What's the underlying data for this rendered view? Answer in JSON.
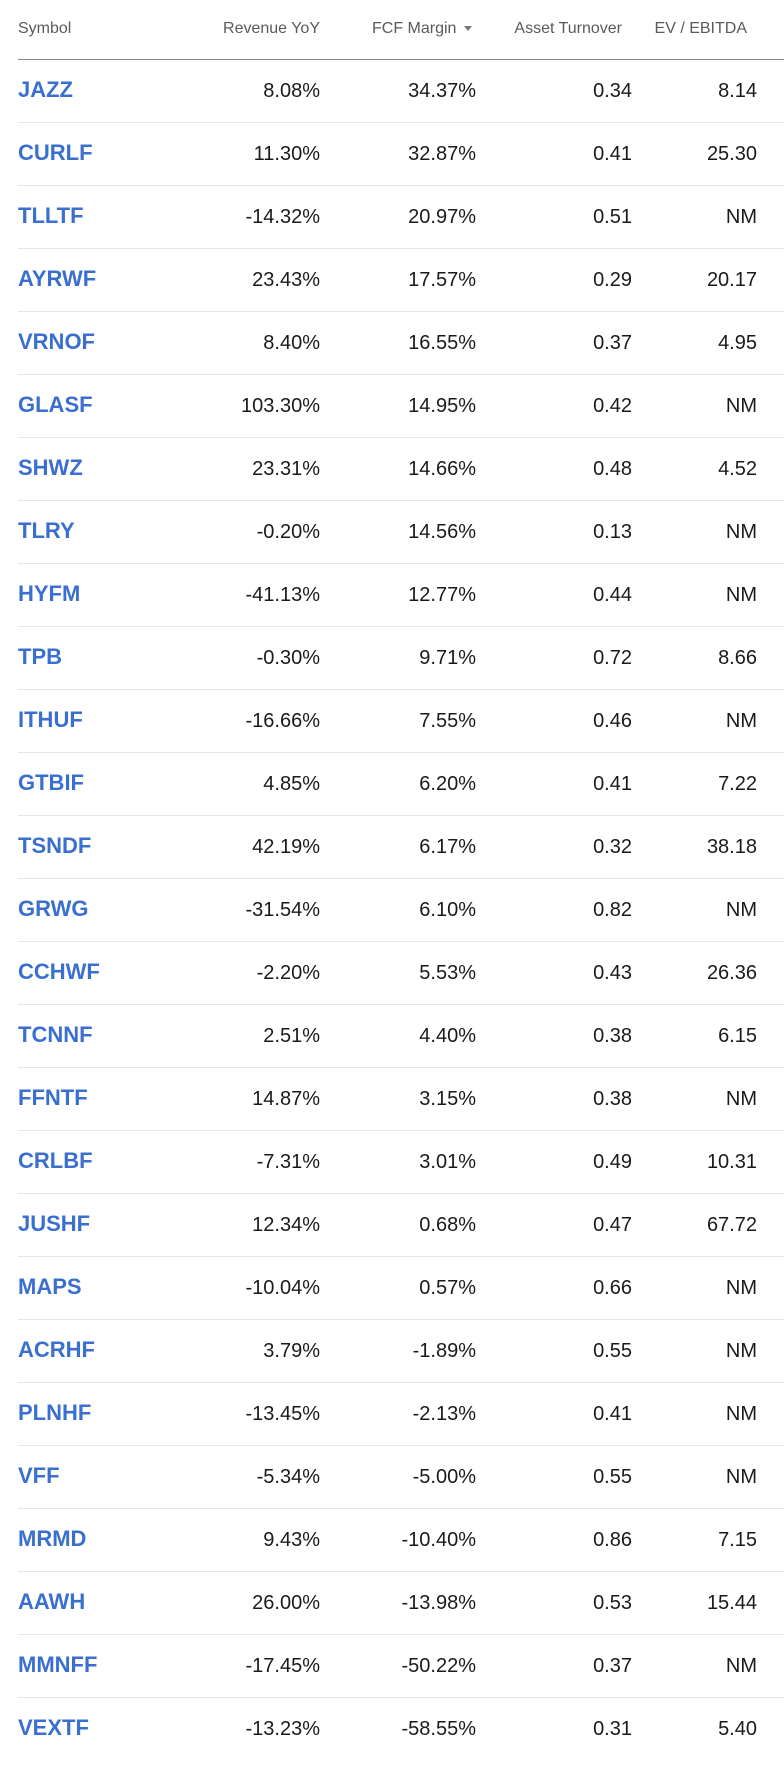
{
  "columns": {
    "symbol": "Symbol",
    "revenue_yoy": "Revenue YoY",
    "fcf_margin": "FCF Margin",
    "asset_turnover": "Asset Turnover",
    "ev_ebitda": "EV / EBITDA"
  },
  "sort": {
    "column": "fcf_margin",
    "direction": "descending",
    "icon": "caret-down-icon"
  },
  "colors": {
    "symbol_link": "#3a6fd0",
    "header_text": "#5a5a5a",
    "row_divider": "#e6e6e6"
  },
  "rows": [
    {
      "symbol": "JAZZ",
      "revenue_yoy": "8.08%",
      "fcf_margin": "34.37%",
      "asset_turnover": "0.34",
      "ev_ebitda": "8.14"
    },
    {
      "symbol": "CURLF",
      "revenue_yoy": "11.30%",
      "fcf_margin": "32.87%",
      "asset_turnover": "0.41",
      "ev_ebitda": "25.30"
    },
    {
      "symbol": "TLLTF",
      "revenue_yoy": "-14.32%",
      "fcf_margin": "20.97%",
      "asset_turnover": "0.51",
      "ev_ebitda": "NM"
    },
    {
      "symbol": "AYRWF",
      "revenue_yoy": "23.43%",
      "fcf_margin": "17.57%",
      "asset_turnover": "0.29",
      "ev_ebitda": "20.17"
    },
    {
      "symbol": "VRNOF",
      "revenue_yoy": "8.40%",
      "fcf_margin": "16.55%",
      "asset_turnover": "0.37",
      "ev_ebitda": "4.95"
    },
    {
      "symbol": "GLASF",
      "revenue_yoy": "103.30%",
      "fcf_margin": "14.95%",
      "asset_turnover": "0.42",
      "ev_ebitda": "NM"
    },
    {
      "symbol": "SHWZ",
      "revenue_yoy": "23.31%",
      "fcf_margin": "14.66%",
      "asset_turnover": "0.48",
      "ev_ebitda": "4.52"
    },
    {
      "symbol": "TLRY",
      "revenue_yoy": "-0.20%",
      "fcf_margin": "14.56%",
      "asset_turnover": "0.13",
      "ev_ebitda": "NM"
    },
    {
      "symbol": "HYFM",
      "revenue_yoy": "-41.13%",
      "fcf_margin": "12.77%",
      "asset_turnover": "0.44",
      "ev_ebitda": "NM"
    },
    {
      "symbol": "TPB",
      "revenue_yoy": "-0.30%",
      "fcf_margin": "9.71%",
      "asset_turnover": "0.72",
      "ev_ebitda": "8.66"
    },
    {
      "symbol": "ITHUF",
      "revenue_yoy": "-16.66%",
      "fcf_margin": "7.55%",
      "asset_turnover": "0.46",
      "ev_ebitda": "NM"
    },
    {
      "symbol": "GTBIF",
      "revenue_yoy": "4.85%",
      "fcf_margin": "6.20%",
      "asset_turnover": "0.41",
      "ev_ebitda": "7.22"
    },
    {
      "symbol": "TSNDF",
      "revenue_yoy": "42.19%",
      "fcf_margin": "6.17%",
      "asset_turnover": "0.32",
      "ev_ebitda": "38.18"
    },
    {
      "symbol": "GRWG",
      "revenue_yoy": "-31.54%",
      "fcf_margin": "6.10%",
      "asset_turnover": "0.82",
      "ev_ebitda": "NM"
    },
    {
      "symbol": "CCHWF",
      "revenue_yoy": "-2.20%",
      "fcf_margin": "5.53%",
      "asset_turnover": "0.43",
      "ev_ebitda": "26.36"
    },
    {
      "symbol": "TCNNF",
      "revenue_yoy": "2.51%",
      "fcf_margin": "4.40%",
      "asset_turnover": "0.38",
      "ev_ebitda": "6.15"
    },
    {
      "symbol": "FFNTF",
      "revenue_yoy": "14.87%",
      "fcf_margin": "3.15%",
      "asset_turnover": "0.38",
      "ev_ebitda": "NM"
    },
    {
      "symbol": "CRLBF",
      "revenue_yoy": "-7.31%",
      "fcf_margin": "3.01%",
      "asset_turnover": "0.49",
      "ev_ebitda": "10.31"
    },
    {
      "symbol": "JUSHF",
      "revenue_yoy": "12.34%",
      "fcf_margin": "0.68%",
      "asset_turnover": "0.47",
      "ev_ebitda": "67.72"
    },
    {
      "symbol": "MAPS",
      "revenue_yoy": "-10.04%",
      "fcf_margin": "0.57%",
      "asset_turnover": "0.66",
      "ev_ebitda": "NM"
    },
    {
      "symbol": "ACRHF",
      "revenue_yoy": "3.79%",
      "fcf_margin": "-1.89%",
      "asset_turnover": "0.55",
      "ev_ebitda": "NM"
    },
    {
      "symbol": "PLNHF",
      "revenue_yoy": "-13.45%",
      "fcf_margin": "-2.13%",
      "asset_turnover": "0.41",
      "ev_ebitda": "NM"
    },
    {
      "symbol": "VFF",
      "revenue_yoy": "-5.34%",
      "fcf_margin": "-5.00%",
      "asset_turnover": "0.55",
      "ev_ebitda": "NM"
    },
    {
      "symbol": "MRMD",
      "revenue_yoy": "9.43%",
      "fcf_margin": "-10.40%",
      "asset_turnover": "0.86",
      "ev_ebitda": "7.15"
    },
    {
      "symbol": "AAWH",
      "revenue_yoy": "26.00%",
      "fcf_margin": "-13.98%",
      "asset_turnover": "0.53",
      "ev_ebitda": "15.44"
    },
    {
      "symbol": "MMNFF",
      "revenue_yoy": "-17.45%",
      "fcf_margin": "-50.22%",
      "asset_turnover": "0.37",
      "ev_ebitda": "NM"
    },
    {
      "symbol": "VEXTF",
      "revenue_yoy": "-13.23%",
      "fcf_margin": "-58.55%",
      "asset_turnover": "0.31",
      "ev_ebitda": "5.40"
    }
  ]
}
